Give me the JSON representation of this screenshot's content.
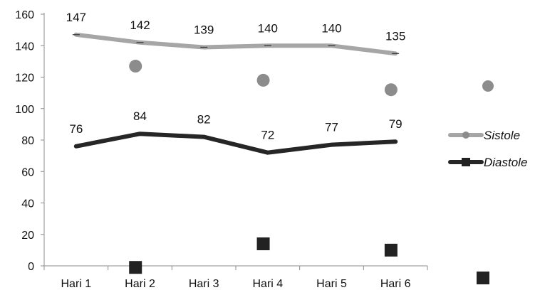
{
  "chart_data": {
    "type": "line",
    "categories": [
      "Hari 1",
      "Hari 2",
      "Hari 3",
      "Hari 4",
      "Hari 5",
      "Hari 6"
    ],
    "ylim": [
      0,
      160
    ],
    "yticks": [
      0,
      20,
      40,
      60,
      80,
      100,
      120,
      140,
      160
    ],
    "grid": false,
    "legend_position": "right",
    "series": [
      {
        "name": "Sistole",
        "values": [
          147,
          142,
          139,
          140,
          140,
          135
        ],
        "data_labels": [
          "147",
          "142",
          "139",
          "140",
          "140",
          "135"
        ],
        "color": "#a6a6a6",
        "marker": "circle"
      },
      {
        "name": "Diastole",
        "values": [
          76,
          84,
          82,
          72,
          77,
          79
        ],
        "data_labels": [
          "76",
          "84",
          "82",
          "72",
          "77",
          "79"
        ],
        "color": "#262626",
        "marker": "square"
      }
    ],
    "stray_markers": [
      {
        "series": "Sistole",
        "x": "Hari 2",
        "y": 127
      },
      {
        "series": "Sistole",
        "x": "Hari 4",
        "y": 118
      },
      {
        "series": "Sistole",
        "x": "Hari 6",
        "y": 112
      },
      {
        "series": "Diastole",
        "x": "Hari 2",
        "y": -1
      },
      {
        "series": "Diastole",
        "x": "Hari 4",
        "y": 14
      },
      {
        "series": "Diastole",
        "x": "Hari 6",
        "y": 10
      }
    ]
  }
}
